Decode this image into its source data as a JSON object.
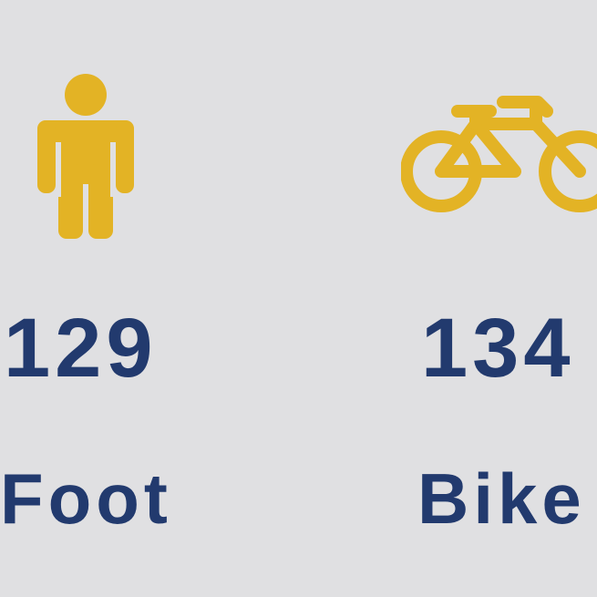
{
  "colors": {
    "background": "#e0e0e2",
    "icon": "#e3b325",
    "text": "#223a6e"
  },
  "stats": [
    {
      "icon": "person-icon",
      "value": "129",
      "label": "Foot"
    },
    {
      "icon": "bicycle-icon",
      "value": "134",
      "label": "Bike"
    }
  ]
}
